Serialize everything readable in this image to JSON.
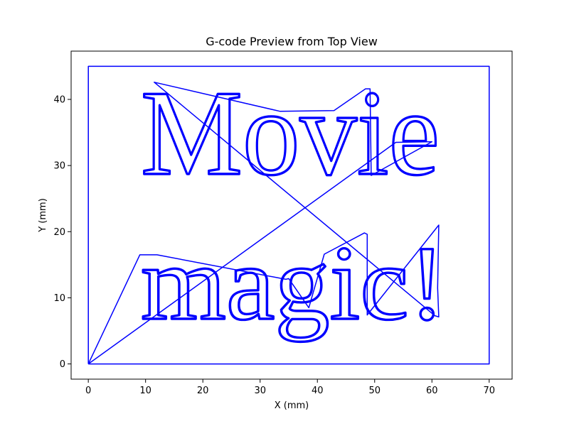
{
  "chart_data": {
    "type": "line",
    "title": "G-code Preview from Top View",
    "xlabel": "X (mm)",
    "ylabel": "Y (mm)",
    "xlim": [
      -3.0,
      74.0
    ],
    "ylim": [
      -2.3,
      47.3
    ],
    "xticks": [
      0,
      10,
      20,
      30,
      40,
      50,
      60,
      70
    ],
    "yticks": [
      0,
      10,
      20,
      30,
      40
    ],
    "grid": false,
    "line_color": "#0000ff",
    "text_paths": [
      "Movie",
      "magic!"
    ],
    "series": [
      {
        "values": [
          {
            "x": 0,
            "y": 0
          },
          {
            "x": 70,
            "y": 0
          },
          {
            "x": 70,
            "y": 45
          },
          {
            "x": 0,
            "y": 45
          },
          {
            "x": 0,
            "y": 0
          }
        ]
      },
      {
        "values": [
          {
            "x": 0,
            "y": 0
          },
          {
            "x": 9,
            "y": 16.5
          },
          {
            "x": 12,
            "y": 16.5
          },
          {
            "x": 34.5,
            "y": 12.8
          },
          {
            "x": 35,
            "y": 12.9
          },
          {
            "x": 38.5,
            "y": 8.5
          },
          {
            "x": 41.2,
            "y": 16.6
          },
          {
            "x": 48.2,
            "y": 19.8
          },
          {
            "x": 48.7,
            "y": 19.6
          },
          {
            "x": 48.7,
            "y": 7.4
          },
          {
            "x": 61.2,
            "y": 21
          },
          {
            "x": 61,
            "y": 11.5
          },
          {
            "x": 61.2,
            "y": 7.1
          },
          {
            "x": 60.5,
            "y": 7.3
          },
          {
            "x": 11.5,
            "y": 42.6
          },
          {
            "x": 33.5,
            "y": 38.2
          },
          {
            "x": 42.9,
            "y": 38.3
          },
          {
            "x": 48.4,
            "y": 41.6
          },
          {
            "x": 49.2,
            "y": 41.6
          },
          {
            "x": 49.4,
            "y": 28.5
          },
          {
            "x": 60,
            "y": 33.6
          },
          {
            "x": 53.7,
            "y": 33.5
          },
          {
            "x": 0,
            "y": 0
          }
        ]
      }
    ]
  }
}
